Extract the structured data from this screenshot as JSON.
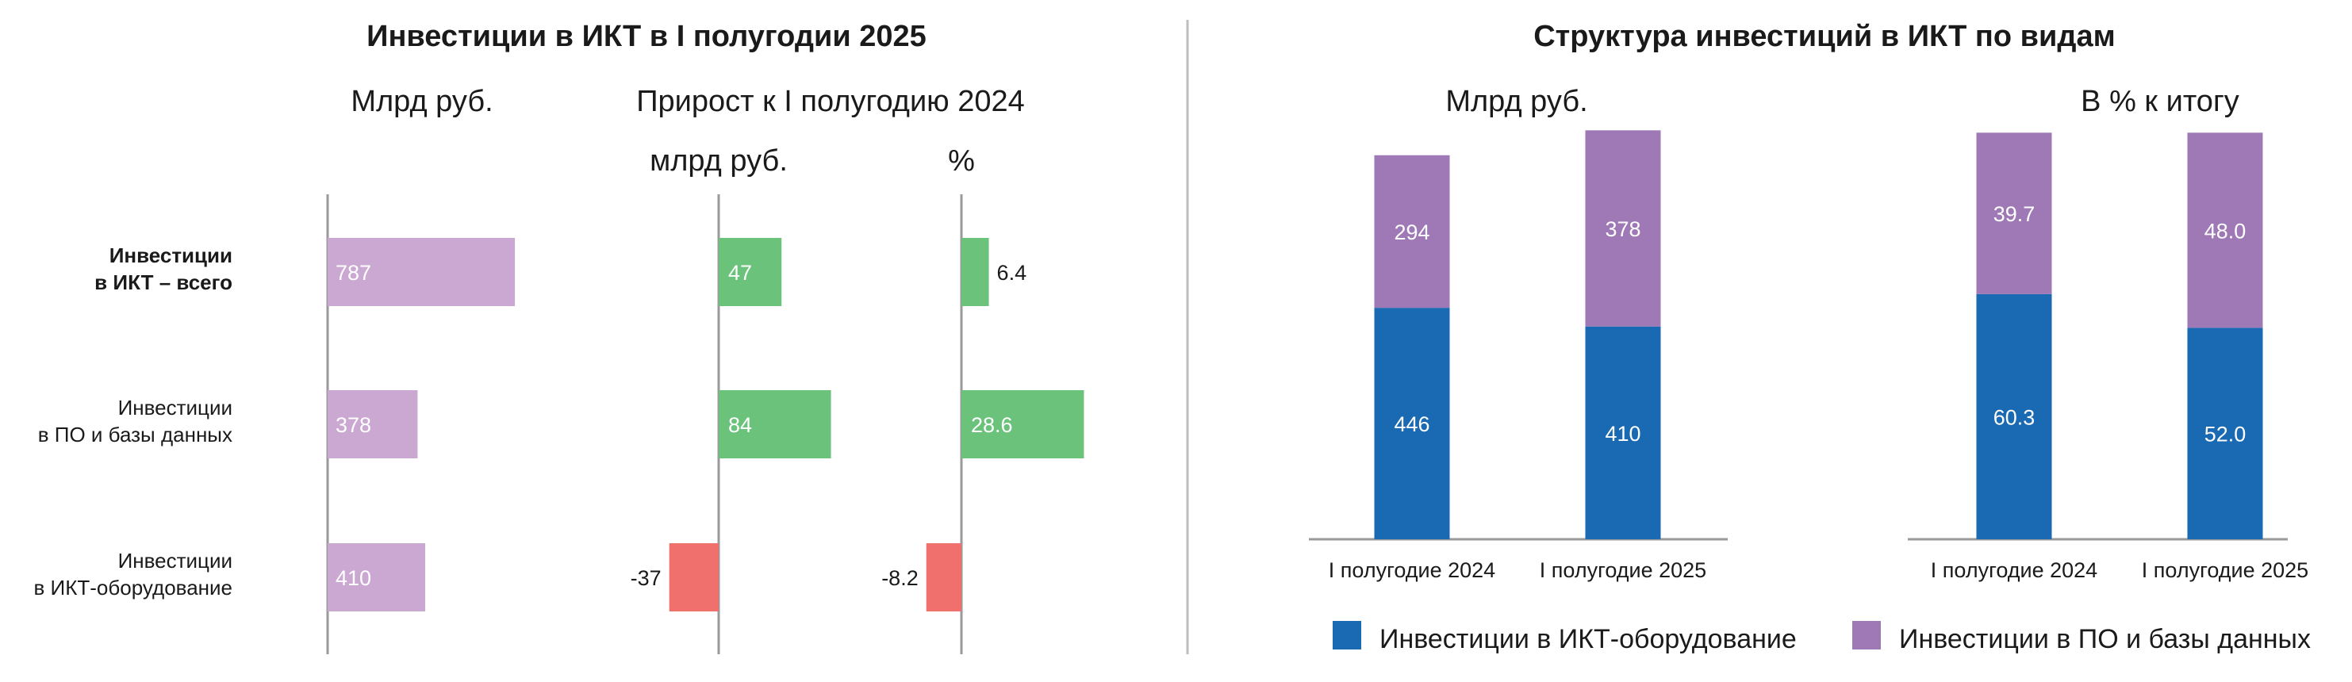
{
  "colors": {
    "pink": "#caa8d2",
    "green": "#6ac27b",
    "red": "#ef706c",
    "blue": "#1a6ab3",
    "purple": "#9e79b5",
    "axis": "#9a9a9a"
  },
  "left_title": "Инвестиции в ИКТ в I полугодии 2025",
  "right_title": "Структура инвестиций в ИКТ по видам",
  "chart_data": [
    {
      "type": "bar",
      "orientation": "horizontal",
      "title": "Млрд руб.",
      "categories": [
        {
          "line1": "Инвестиции",
          "line2": "в ИКТ – всего",
          "bold": true
        },
        {
          "line1": "Инвестиции",
          "line2": "в ПО и базы данных",
          "bold": false
        },
        {
          "line1": "Инвестиции",
          "line2": "в ИКТ-оборудование",
          "bold": false
        }
      ],
      "values": [
        787,
        378,
        410
      ],
      "labels": [
        "787",
        "378",
        "410"
      ]
    },
    {
      "type": "bar",
      "orientation": "horizontal",
      "group_title": "Прирост к I полугодию 2024",
      "title": "млрд руб.",
      "values": [
        47,
        84,
        -37
      ],
      "labels": [
        "47",
        "84",
        "-37"
      ]
    },
    {
      "type": "bar",
      "orientation": "horizontal",
      "title": "%",
      "values": [
        6.4,
        28.6,
        -8.2
      ],
      "labels": [
        "6.4",
        "28.6",
        "-8.2"
      ]
    },
    {
      "type": "bar",
      "stacked": true,
      "title": "Млрд руб.",
      "categories": [
        "I полугодие 2024",
        "I полугодие 2025"
      ],
      "series": [
        {
          "name": "Инвестиции в ИКТ-оборудование",
          "values": [
            446,
            410
          ],
          "labels": [
            "446",
            "410"
          ]
        },
        {
          "name": "Инвестиции в ПО и базы данных",
          "values": [
            294,
            378
          ],
          "labels": [
            "294",
            "378"
          ]
        }
      ]
    },
    {
      "type": "bar",
      "stacked": true,
      "title": "В % к итогу",
      "categories": [
        "I полугодие 2024",
        "I полугодие 2025"
      ],
      "series": [
        {
          "name": "Инвестиции в ИКТ-оборудование",
          "values": [
            60.3,
            52.0
          ],
          "labels": [
            "60.3",
            "52.0"
          ]
        },
        {
          "name": "Инвестиции в ПО и базы данных",
          "values": [
            39.7,
            48.0
          ],
          "labels": [
            "39.7",
            "48.0"
          ]
        }
      ]
    }
  ],
  "legend": [
    {
      "name": "Инвестиции в ИКТ-оборудование"
    },
    {
      "name": "Инвестиции в ПО и базы данных"
    }
  ]
}
